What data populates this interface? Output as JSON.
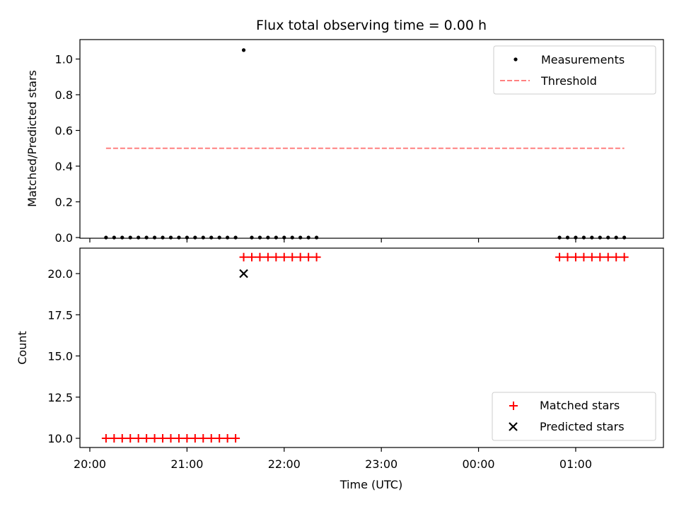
{
  "colors": {
    "measurement": "#000000",
    "threshold": "#ff8080",
    "matched": "#ff0000",
    "predicted": "#000000"
  },
  "chart_data": [
    {
      "type": "scatter",
      "title": "Flux total observing time = 0.00 h",
      "xlabel": "",
      "ylabel": "Matched/Predicted stars",
      "xlim": [
        "20:00",
        "01:45"
      ],
      "ylim": [
        0,
        1.1
      ],
      "yticks": [
        "0.0",
        "0.2",
        "0.4",
        "0.6",
        "0.8",
        "1.0"
      ],
      "ytick_values": [
        0,
        0.2,
        0.4,
        0.6,
        0.8,
        1.0
      ],
      "grid": false,
      "legend_position": "top-right",
      "series": [
        {
          "name": "Measurements",
          "kind": "points",
          "x": [
            "20:10",
            "20:15",
            "20:20",
            "20:25",
            "20:30",
            "20:35",
            "20:40",
            "20:45",
            "20:50",
            "20:55",
            "21:00",
            "21:05",
            "21:10",
            "21:15",
            "21:20",
            "21:25",
            "21:30",
            "21:35",
            "21:40",
            "21:45",
            "21:50",
            "21:55",
            "22:00",
            "22:05",
            "22:10",
            "22:15",
            "22:20",
            "00:50",
            "00:55",
            "01:00",
            "01:05",
            "01:10",
            "01:15",
            "01:20",
            "01:25",
            "01:30"
          ],
          "y": [
            0,
            0,
            0,
            0,
            0,
            0,
            0,
            0,
            0,
            0,
            0,
            0,
            0,
            0,
            0,
            0,
            0,
            1.05,
            0,
            0,
            0,
            0,
            0,
            0,
            0,
            0,
            0,
            0,
            0,
            0,
            0,
            0,
            0,
            0,
            0,
            0
          ]
        },
        {
          "name": "Threshold",
          "kind": "dashed-line",
          "x": [
            "20:10",
            "01:30"
          ],
          "y": [
            0.5,
            0.5
          ]
        }
      ]
    },
    {
      "type": "scatter",
      "title": "",
      "xlabel": "Time (UTC)",
      "ylabel": "Count",
      "xlim": [
        "20:00",
        "01:45"
      ],
      "xticks": [
        "20:00",
        "21:00",
        "22:00",
        "23:00",
        "00:00",
        "01:00"
      ],
      "ylim": [
        9.5,
        21.5
      ],
      "yticks": [
        "10.0",
        "12.5",
        "15.0",
        "17.5",
        "20.0"
      ],
      "ytick_values": [
        10,
        12.5,
        15,
        17.5,
        20
      ],
      "grid": false,
      "legend_position": "bottom-right",
      "series": [
        {
          "name": "Matched stars",
          "marker": "plus",
          "x": [
            "20:10",
            "20:15",
            "20:20",
            "20:25",
            "20:30",
            "20:35",
            "20:40",
            "20:45",
            "20:50",
            "20:55",
            "21:00",
            "21:05",
            "21:10",
            "21:15",
            "21:20",
            "21:25",
            "21:30",
            "21:35",
            "21:40",
            "21:45",
            "21:50",
            "21:55",
            "22:00",
            "22:05",
            "22:10",
            "22:15",
            "22:20",
            "00:50",
            "00:55",
            "01:00",
            "01:05",
            "01:10",
            "01:15",
            "01:20",
            "01:25",
            "01:30"
          ],
          "y": [
            10,
            10,
            10,
            10,
            10,
            10,
            10,
            10,
            10,
            10,
            10,
            10,
            10,
            10,
            10,
            10,
            10,
            21,
            21,
            21,
            21,
            21,
            21,
            21,
            21,
            21,
            21,
            21,
            21,
            21,
            21,
            21,
            21,
            21,
            21,
            21
          ]
        },
        {
          "name": "Predicted stars",
          "marker": "x",
          "x": [
            "21:35"
          ],
          "y": [
            20
          ]
        }
      ]
    }
  ]
}
